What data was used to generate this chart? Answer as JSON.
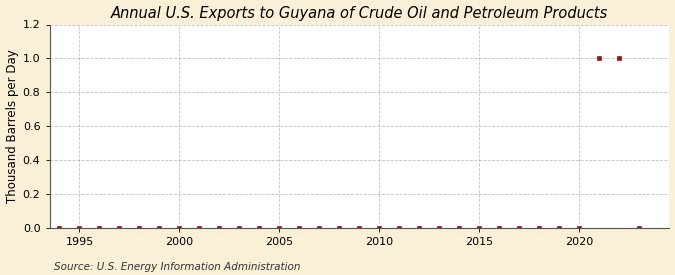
{
  "title": "Annual U.S. Exports to Guyana of Crude Oil and Petroleum Products",
  "ylabel": "Thousand Barrels per Day",
  "source": "Source: U.S. Energy Information Administration",
  "background_color": "#faefd7",
  "plot_background_color": "#ffffff",
  "marker_color": "#8b1a1a",
  "grid_color": "#999999",
  "years": [
    1994,
    1995,
    1996,
    1997,
    1998,
    1999,
    2000,
    2001,
    2002,
    2003,
    2004,
    2005,
    2006,
    2007,
    2008,
    2009,
    2010,
    2011,
    2012,
    2013,
    2014,
    2015,
    2016,
    2017,
    2018,
    2019,
    2020,
    2021,
    2022,
    2023
  ],
  "values": [
    0,
    0,
    0,
    0,
    0,
    0,
    0,
    0,
    0,
    0,
    0,
    0,
    0,
    0,
    0,
    0,
    0,
    0,
    0,
    0,
    0,
    0,
    0,
    0,
    0,
    0,
    0,
    1.0,
    1.0,
    0
  ],
  "xlim": [
    1993.5,
    2024.5
  ],
  "ylim": [
    0.0,
    1.2
  ],
  "yticks": [
    0.0,
    0.2,
    0.4,
    0.6,
    0.8,
    1.0,
    1.2
  ],
  "xticks": [
    1995,
    2000,
    2005,
    2010,
    2015,
    2020
  ],
  "title_fontsize": 10.5,
  "label_fontsize": 8.5,
  "tick_fontsize": 8,
  "source_fontsize": 7.5
}
